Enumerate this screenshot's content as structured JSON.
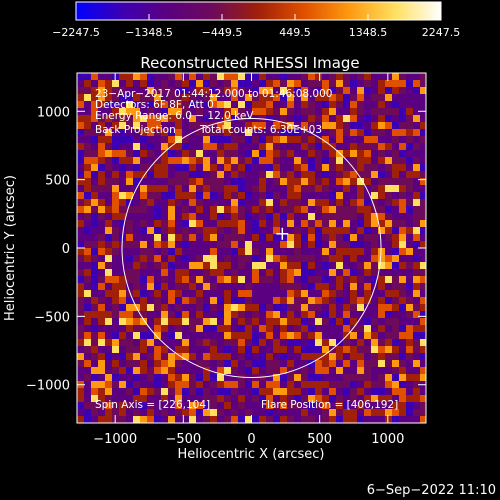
{
  "chart_data": {
    "type": "heatmap",
    "title": "Reconstructed RHESSI Image",
    "xlabel": "Heliocentric X (arcsec)",
    "ylabel": "Heliocentric Y (arcsec)",
    "xlim": [
      -1280,
      1280
    ],
    "ylim": [
      -1280,
      1280
    ],
    "x_ticks": [
      -1000,
      -500,
      0,
      500,
      1000
    ],
    "x_tick_labels": [
      "−1000",
      "−500",
      "0",
      "500",
      "1000"
    ],
    "y_ticks": [
      -1000,
      -500,
      0,
      500,
      1000
    ],
    "y_tick_labels": [
      "−1000",
      "−500",
      "0",
      "500",
      "1000"
    ],
    "colorbar": {
      "min": -2247.5,
      "max": 2247.5,
      "tick_values": [
        -2247.5,
        -1348.5,
        -449.5,
        449.5,
        1348.5,
        2247.5
      ],
      "tick_labels": [
        "−2247.5",
        "−1348.5",
        "−449.5",
        "449.5",
        "1348.5",
        "2247.5"
      ],
      "colors": [
        "#0000ff",
        "#3c00b4",
        "#5a0080",
        "#6e0a5a",
        "#a0200a",
        "#e05000",
        "#ff9a10",
        "#ffe060",
        "#ffffff"
      ]
    },
    "solar_limb_radius": 950,
    "flare_position": [
      406,
      192
    ],
    "marker_position": [
      226,
      104
    ]
  },
  "annotations": {
    "line1": "23−Apr−2017 01:44:12.000 to 01:46:08.000",
    "line2": "Detectors: 6F 8F, Att 0",
    "line3": "Energy Range: 6.0 − 12.0 keV",
    "line4a": "Back Projection",
    "line4b": "Total counts: 6.30E+03",
    "spin_axis": "Spin Axis = [226,104]",
    "flare_position": "Flare Position = [406,192]"
  },
  "footer": {
    "timestamp": "6−Sep−2022 11:10"
  }
}
